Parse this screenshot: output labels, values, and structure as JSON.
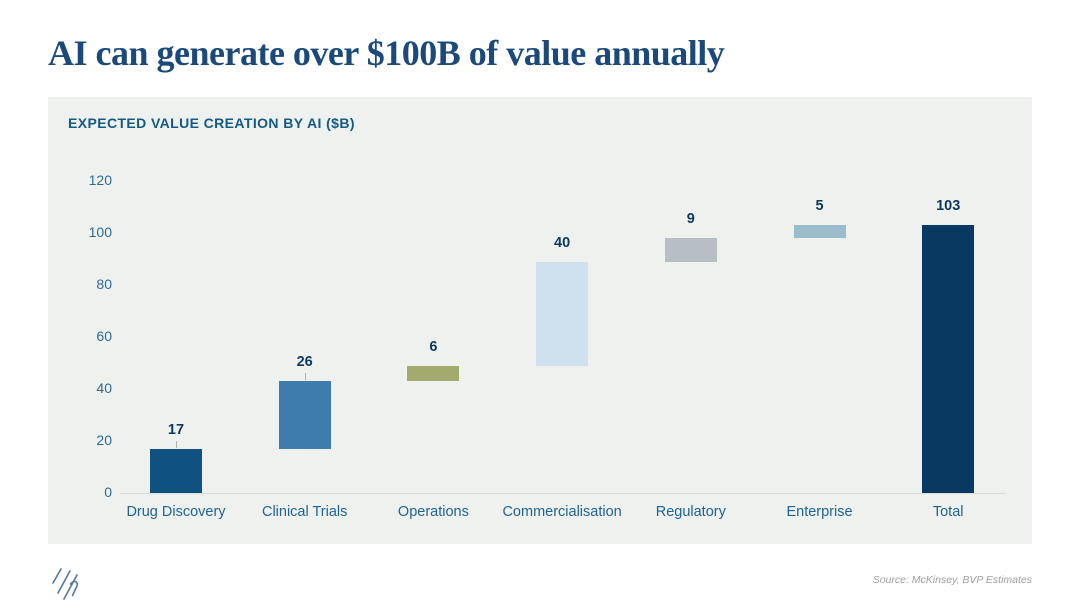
{
  "page": {
    "title": "AI can generate over $100B of value annually"
  },
  "chart_data": {
    "type": "bar",
    "subtype": "waterfall",
    "title": "EXPECTED VALUE CREATION BY AI ($B)",
    "xlabel": "",
    "ylabel": "",
    "ylim": [
      0,
      120
    ],
    "y_ticks": [
      0,
      20,
      40,
      60,
      80,
      100,
      120
    ],
    "grid": false,
    "legend": false,
    "categories": [
      "Drug Discovery",
      "Clinical Trials",
      "Operations",
      "Commercialisation",
      "Regulatory",
      "Enterprise",
      "Total"
    ],
    "values": [
      17,
      26,
      6,
      40,
      9,
      5,
      103
    ],
    "points": [
      {
        "label": "Drug Discovery",
        "value": 17,
        "start": 0,
        "end": 17,
        "color": "#0f5181",
        "connector": true
      },
      {
        "label": "Clinical Trials",
        "value": 26,
        "start": 17,
        "end": 43,
        "color": "#3e7cad",
        "connector": true
      },
      {
        "label": "Operations",
        "value": 6,
        "start": 43,
        "end": 49,
        "color": "#a2aa6d",
        "connector": false
      },
      {
        "label": "Commercialisation",
        "value": 40,
        "start": 49,
        "end": 89,
        "color": "#cfe0ef",
        "connector": false
      },
      {
        "label": "Regulatory",
        "value": 9,
        "start": 89,
        "end": 98,
        "color": "#b7bec4",
        "connector": false
      },
      {
        "label": "Enterprise",
        "value": 5,
        "start": 98,
        "end": 103,
        "color": "#9bbcca",
        "connector": false
      },
      {
        "label": "Total",
        "value": 103,
        "start": 0,
        "end": 103,
        "color": "#083a61",
        "connector": false
      }
    ]
  },
  "theme": {
    "page_background": "#ffffff",
    "panel_background": "#eef1ee",
    "title_color": "#1b4a7a",
    "chart_title_color": "#135a85",
    "axis_label_color": "#2e6b99",
    "category_label_color": "#1f6394",
    "value_label_color": "#0c3a5f",
    "baseline_color": "#d8ddd8",
    "logo_color": "#51789b"
  },
  "footer": {
    "logo": "bvp-slashes-logo",
    "source": "Source: McKinsey, BVP Estimates"
  }
}
